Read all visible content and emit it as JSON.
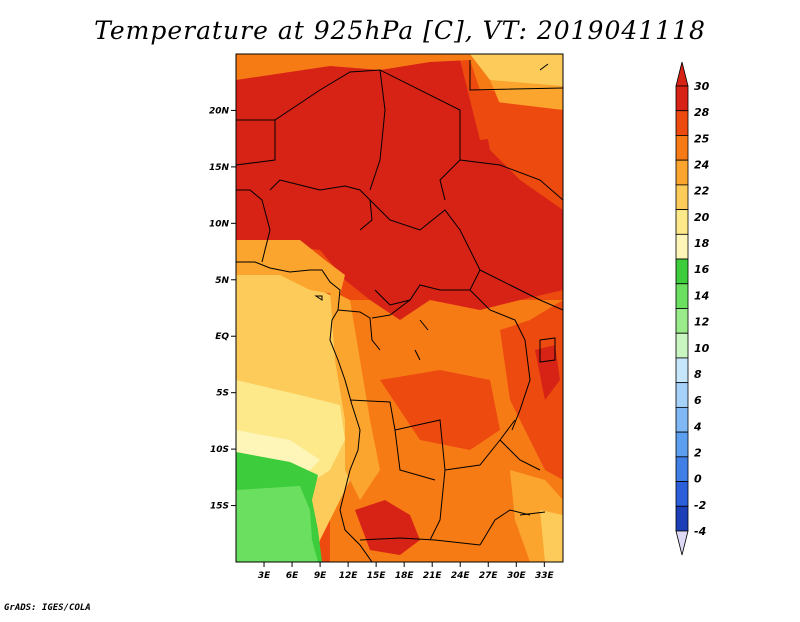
{
  "title": "Temperature at 925hPa [C], VT: 2019041118",
  "footer": "GrADS: IGES/COLA",
  "map": {
    "lon_range": [
      0,
      35
    ],
    "lat_range": [
      -20,
      25
    ],
    "x_ticks": [
      {
        "value": 3,
        "label": "3E"
      },
      {
        "value": 6,
        "label": "6E"
      },
      {
        "value": 9,
        "label": "9E"
      },
      {
        "value": 12,
        "label": "12E"
      },
      {
        "value": 15,
        "label": "15E"
      },
      {
        "value": 18,
        "label": "18E"
      },
      {
        "value": 21,
        "label": "21E"
      },
      {
        "value": 24,
        "label": "24E"
      },
      {
        "value": 27,
        "label": "27E"
      },
      {
        "value": 30,
        "label": "30E"
      },
      {
        "value": 33,
        "label": "33E"
      }
    ],
    "y_ticks": [
      {
        "value": 20,
        "label": "20N"
      },
      {
        "value": 15,
        "label": "15N"
      },
      {
        "value": 10,
        "label": "10N"
      },
      {
        "value": 5,
        "label": "5N"
      },
      {
        "value": 0,
        "label": "EQ"
      },
      {
        "value": -5,
        "label": "5S"
      },
      {
        "value": -10,
        "label": "10S"
      },
      {
        "value": -15,
        "label": "15S"
      }
    ]
  },
  "colorbar": {
    "labels": [
      "-4",
      "-2",
      "0",
      "2",
      "4",
      "6",
      "8",
      "10",
      "12",
      "14",
      "16",
      "18",
      "20",
      "22",
      "24",
      "25",
      "28",
      "30"
    ],
    "colors": [
      "#1a0e6e",
      "#1c3fb8",
      "#2a5fd9",
      "#3f7fe6",
      "#5c9ef0",
      "#7fb8f5",
      "#a6d2fa",
      "#c6e6fc",
      "#c8f5c0",
      "#9aeb8a",
      "#6be060",
      "#3ccc3c",
      "#fdf6b8",
      "#fde88a",
      "#fccb5a",
      "#fba42e",
      "#f77b14",
      "#ed4a10",
      "#d72316"
    ],
    "low_cap_color": "#ddd8f4",
    "high_cap_color": "#d72316"
  }
}
